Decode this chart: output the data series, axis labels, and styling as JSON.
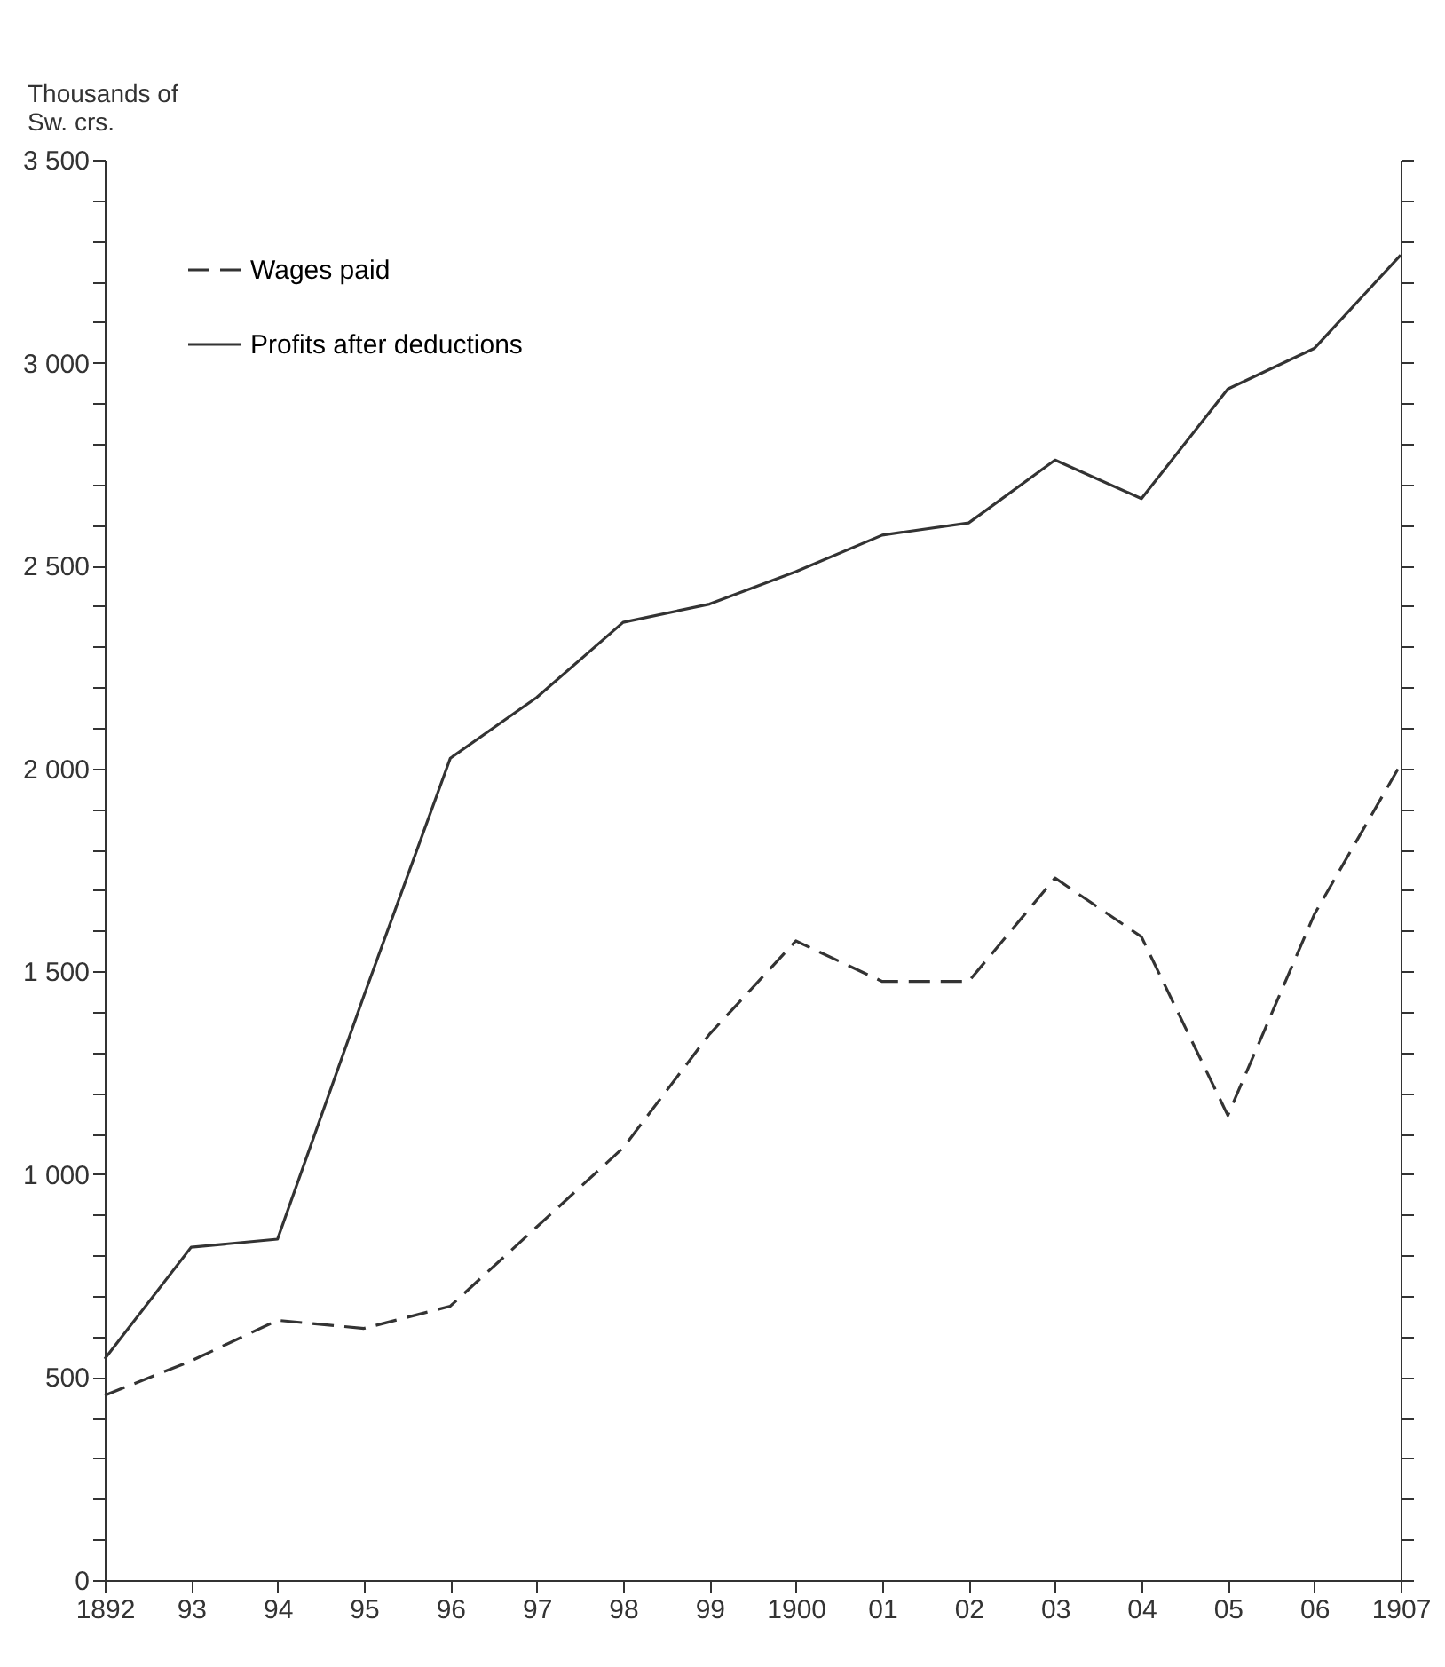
{
  "chart_data": {
    "type": "line",
    "ylabel": "Thousands of\nSw. crs.",
    "categories": [
      "1892",
      "93",
      "94",
      "95",
      "96",
      "97",
      "98",
      "99",
      "1900",
      "01",
      "02",
      "03",
      "04",
      "05",
      "06",
      "1907"
    ],
    "series": [
      {
        "name": "Wages paid",
        "color": "#333333",
        "line_style": "dashed",
        "values": [
          455,
          540,
          640,
          620,
          675,
          870,
          1065,
          1345,
          1575,
          1475,
          1475,
          1730,
          1585,
          1145,
          1640,
          2010
        ]
      },
      {
        "name": "Profits after deductions",
        "color": "#333333",
        "line_style": "solid",
        "values": [
          545,
          820,
          840,
          1440,
          2025,
          2175,
          2360,
          2405,
          2485,
          2575,
          2605,
          2760,
          2665,
          2935,
          3035,
          3265
        ]
      }
    ],
    "ylim": [
      0,
      3500
    ],
    "yticks": [
      0,
      {
        "value": 100,
        "label": null
      },
      {
        "value": 200,
        "label": null
      },
      {
        "value": 300,
        "label": null
      },
      {
        "value": 400,
        "label": null
      },
      500,
      {
        "value": 600,
        "label": null
      },
      {
        "value": 700,
        "label": null
      },
      {
        "value": 800,
        "label": null
      },
      {
        "value": 900,
        "label": null
      },
      {
        "value": 1000,
        "label": "1 000"
      },
      {
        "value": 1100,
        "label": null
      },
      {
        "value": 1200,
        "label": null
      },
      {
        "value": 1300,
        "label": null
      },
      {
        "value": 1400,
        "label": null
      },
      {
        "value": 1500,
        "label": "1 500"
      },
      {
        "value": 1600,
        "label": null
      },
      {
        "value": 1700,
        "label": null
      },
      {
        "value": 1800,
        "label": null
      },
      {
        "value": 1900,
        "label": null
      },
      {
        "value": 2000,
        "label": "2 000"
      },
      {
        "value": 2100,
        "label": null
      },
      {
        "value": 2200,
        "label": null
      },
      {
        "value": 2300,
        "label": null
      },
      {
        "value": 2400,
        "label": null
      },
      {
        "value": 2500,
        "label": "2 500"
      },
      {
        "value": 2600,
        "label": null
      },
      {
        "value": 2700,
        "label": null
      },
      {
        "value": 2800,
        "label": null
      },
      {
        "value": 2900,
        "label": null
      },
      {
        "value": 3000,
        "label": "3 000"
      },
      {
        "value": 3100,
        "label": null
      },
      {
        "value": 3200,
        "label": null
      },
      {
        "value": 3300,
        "label": null
      },
      {
        "value": 3400,
        "label": null
      },
      {
        "value": 3500,
        "label": "3 500"
      }
    ],
    "grid": false,
    "legend": "top left"
  }
}
